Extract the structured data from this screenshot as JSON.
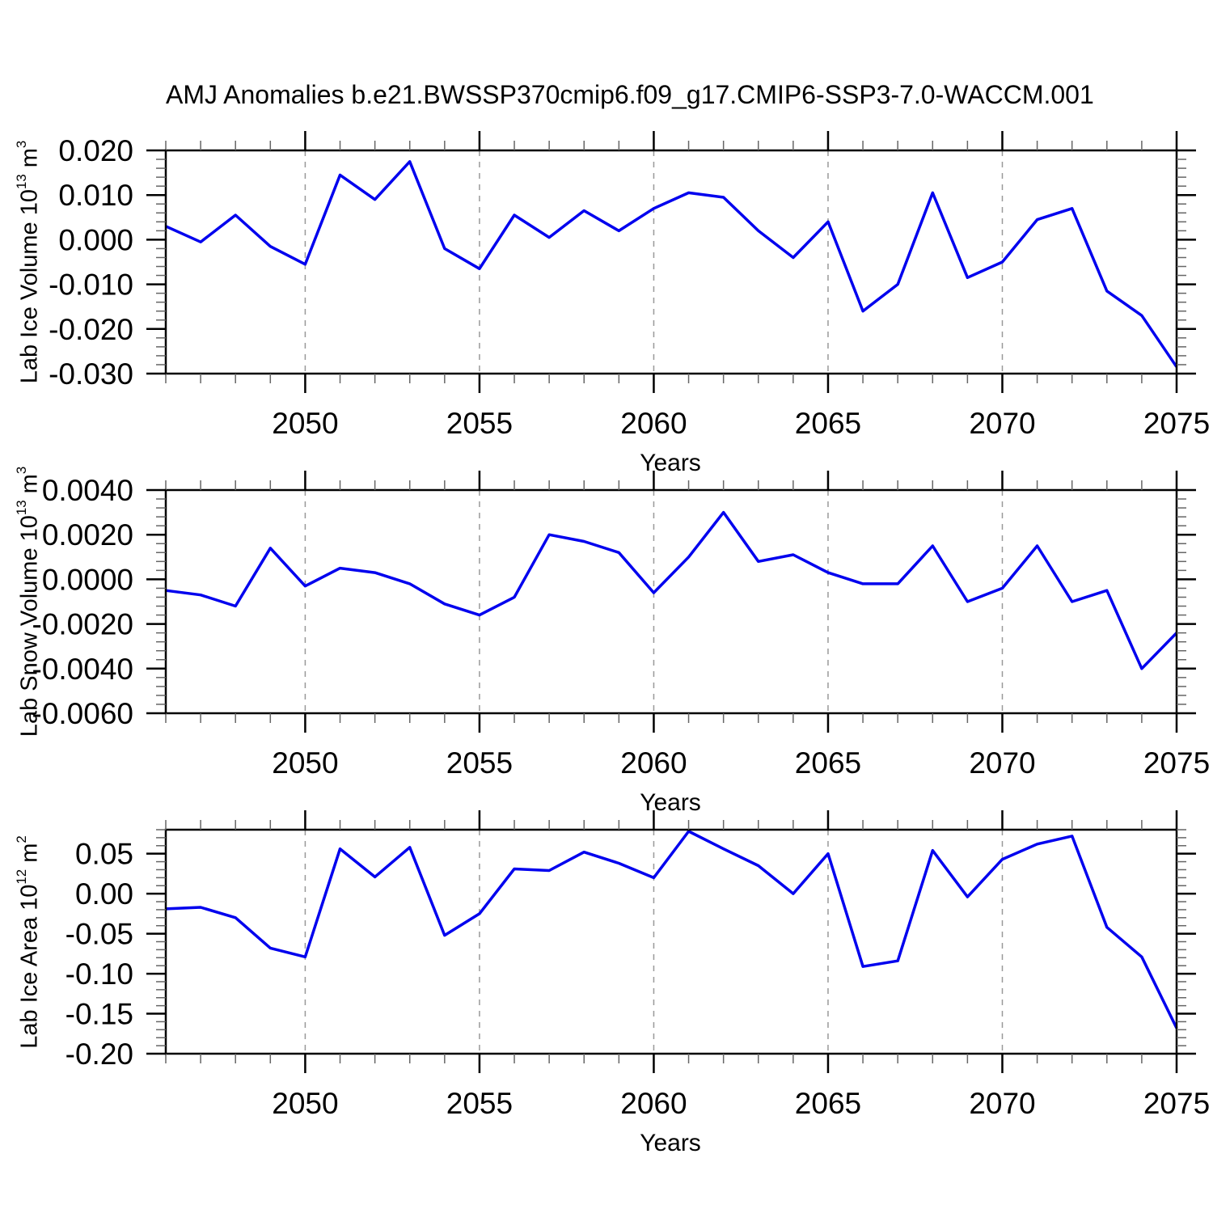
{
  "title": "AMJ Anomalies b.e21.BWSSP370cmip6.f09_g17.CMIP6-SSP3-7.0-WACCM.001",
  "colors": {
    "series_line": "#0000EE",
    "axis": "#000000",
    "gridline": "#999999",
    "minor_tick": "#666666",
    "text": "#000000",
    "background": "#ffffff"
  },
  "chart_data": [
    {
      "type": "line",
      "name": "lab-ice-volume",
      "ylabel": {
        "base": "Lab Ice Volume 10",
        "exp": "13",
        "unit": " m",
        "unit_exp": "3"
      },
      "xlabel": "Years",
      "x": [
        2046,
        2047,
        2048,
        2049,
        2050,
        2051,
        2052,
        2053,
        2054,
        2055,
        2056,
        2057,
        2058,
        2059,
        2060,
        2061,
        2062,
        2063,
        2064,
        2065,
        2066,
        2067,
        2068,
        2069,
        2070,
        2071,
        2072,
        2073,
        2074,
        2075
      ],
      "values": [
        0.003,
        -0.0005,
        0.0055,
        -0.0015,
        -0.0055,
        0.0145,
        0.009,
        0.0175,
        -0.002,
        -0.0065,
        0.0055,
        0.0005,
        0.0065,
        0.002,
        0.007,
        0.0105,
        0.0095,
        0.002,
        -0.004,
        0.004,
        -0.016,
        -0.01,
        0.0105,
        -0.0085,
        -0.005,
        0.0045,
        0.007,
        -0.0115,
        -0.017,
        -0.0285
      ],
      "ylim": [
        -0.03,
        0.02
      ],
      "ytick_major": 0.01,
      "ytick_minor": 0.002,
      "ytick_decimals": 3,
      "ytick_labels": [
        "0.020",
        "0.010",
        "0.000",
        "-0.010",
        "-0.020",
        "-0.030"
      ],
      "xticks_major": [
        2050,
        2055,
        2060,
        2065,
        2070,
        2075
      ],
      "gridlines_x": [
        2050,
        2055,
        2060,
        2065,
        2070
      ],
      "grid": "vertical-dashed",
      "legend": "none"
    },
    {
      "type": "line",
      "name": "lab-snow-volume",
      "ylabel": {
        "base": "Lab Snow Volume 10",
        "exp": "13",
        "unit": " m",
        "unit_exp": "3"
      },
      "xlabel": "Years",
      "x": [
        2046,
        2047,
        2048,
        2049,
        2050,
        2051,
        2052,
        2053,
        2054,
        2055,
        2056,
        2057,
        2058,
        2059,
        2060,
        2061,
        2062,
        2063,
        2064,
        2065,
        2066,
        2067,
        2068,
        2069,
        2070,
        2071,
        2072,
        2073,
        2074,
        2075
      ],
      "values": [
        -0.0005,
        -0.0007,
        -0.0012,
        0.0014,
        -0.0003,
        0.0005,
        0.0003,
        -0.0002,
        -0.0011,
        -0.0016,
        -0.0008,
        0.002,
        0.0017,
        0.0012,
        -0.0006,
        0.001,
        0.003,
        0.0008,
        0.0011,
        0.0003,
        -0.0002,
        -0.0002,
        0.0015,
        -0.001,
        -0.0004,
        0.0015,
        -0.001,
        -0.0005,
        -0.004,
        -0.0024
      ],
      "ylim": [
        -0.006,
        0.004
      ],
      "ytick_major": 0.002,
      "ytick_minor": 0.0004,
      "ytick_decimals": 4,
      "ytick_labels": [
        "0.0040",
        "0.0020",
        "0.0000",
        "-0.0020",
        "-0.0040",
        "-0.0060"
      ],
      "xticks_major": [
        2050,
        2055,
        2060,
        2065,
        2070,
        2075
      ],
      "gridlines_x": [
        2050,
        2055,
        2060,
        2065,
        2070
      ],
      "grid": "vertical-dashed",
      "legend": "none"
    },
    {
      "type": "line",
      "name": "lab-ice-area",
      "ylabel": {
        "base": "Lab Ice Area 10",
        "exp": "12",
        "unit": " m",
        "unit_exp": "2"
      },
      "xlabel": "Years",
      "x": [
        2046,
        2047,
        2048,
        2049,
        2050,
        2051,
        2052,
        2053,
        2054,
        2055,
        2056,
        2057,
        2058,
        2059,
        2060,
        2061,
        2062,
        2063,
        2064,
        2065,
        2066,
        2067,
        2068,
        2069,
        2070,
        2071,
        2072,
        2073,
        2074,
        2075
      ],
      "values": [
        -0.019,
        -0.017,
        -0.03,
        -0.068,
        -0.079,
        0.056,
        0.021,
        0.058,
        -0.052,
        -0.025,
        0.031,
        0.029,
        0.052,
        0.038,
        0.02,
        0.078,
        0.056,
        0.035,
        0.0,
        0.05,
        -0.091,
        -0.084,
        0.054,
        -0.004,
        0.043,
        0.062,
        0.072,
        -0.042,
        -0.079,
        -0.168
      ],
      "ylim": [
        -0.2,
        0.08
      ],
      "ytick_major": 0.05,
      "ytick_minor": 0.01,
      "ytick_decimals": 2,
      "ytick_labels": [
        "0.05",
        "0.00",
        "-0.05",
        "-0.10",
        "-0.15",
        "-0.20"
      ],
      "xticks_major": [
        2050,
        2055,
        2060,
        2065,
        2070,
        2075
      ],
      "gridlines_x": [
        2050,
        2055,
        2060,
        2065,
        2070
      ],
      "grid": "vertical-dashed",
      "legend": "none"
    }
  ]
}
